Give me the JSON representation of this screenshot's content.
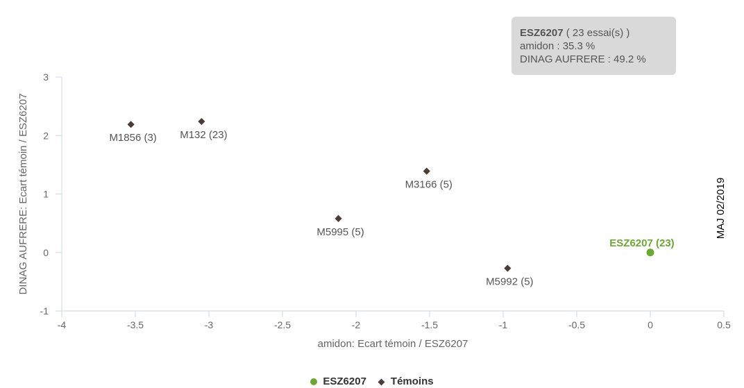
{
  "chart_data": {
    "type": "scatter",
    "xlabel": "amidon: Ecart témoin / ESZ6207",
    "ylabel": "DINAG AUFRERE: Ecart témoin / ESZ6207",
    "xlim": [
      -4,
      0.5
    ],
    "ylim": [
      -1,
      3
    ],
    "x_ticks": [
      -4,
      -3.5,
      -3,
      -2.5,
      -2,
      -1.5,
      -1,
      -0.5,
      0,
      0.5
    ],
    "x_tick_labels": [
      "-4",
      "-3.5",
      "-3",
      "-2.5",
      "-2",
      "-1.5",
      "-1",
      "-0.5",
      "0",
      "0.5"
    ],
    "y_ticks": [
      -1,
      0,
      1,
      2,
      3
    ],
    "y_tick_labels": [
      "-1",
      "0",
      "1",
      "2",
      "3"
    ],
    "grid": false,
    "legend_position": "bottom",
    "series": [
      {
        "name": "ESZ6207",
        "marker": "circle",
        "color": "#6aa830",
        "points": [
          {
            "x": 0,
            "y": 0,
            "label": "ESZ6207 (23)"
          }
        ]
      },
      {
        "name": "Témoins",
        "marker": "diamond",
        "color": "#4a3c38",
        "points": [
          {
            "x": -3.53,
            "y": 2.19,
            "label": "M1856 (3)"
          },
          {
            "x": -3.05,
            "y": 2.24,
            "label": "M132 (23)"
          },
          {
            "x": -1.52,
            "y": 1.39,
            "label": "M3166 (5)"
          },
          {
            "x": -2.12,
            "y": 0.58,
            "label": "M5995 (5)"
          },
          {
            "x": -0.97,
            "y": -0.27,
            "label": "M5992 (5)"
          }
        ]
      }
    ]
  },
  "tooltip": {
    "name": "ESZ6207",
    "trials": "( 23 essai(s) )",
    "line1": "amidon : 35.3 %",
    "line2": "DINAG AUFRERE : 49.2 %"
  },
  "side_note": "MAJ 02/2019",
  "colors": {
    "axis": "#ccd6eb",
    "tick_text": "#666666",
    "point_label": "#555555"
  }
}
